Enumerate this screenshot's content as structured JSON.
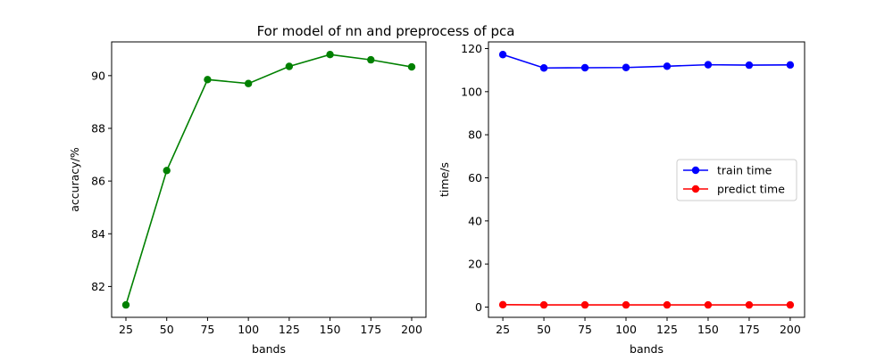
{
  "figure": {
    "title": "For model of nn and preprocess of pca"
  },
  "chart_data": [
    {
      "type": "line",
      "x": [
        25,
        50,
        75,
        100,
        125,
        150,
        175,
        200
      ],
      "series": [
        {
          "values": [
            81.3,
            86.4,
            89.85,
            89.7,
            90.35,
            90.8,
            90.6,
            90.33
          ],
          "color": "#008000"
        }
      ],
      "xlabel": "bands",
      "ylabel": "accuracy/%",
      "xlim": [
        16.25,
        208.75
      ],
      "ylim": [
        80.83,
        91.28
      ],
      "xticks": [
        25,
        50,
        75,
        100,
        125,
        150,
        175,
        200
      ],
      "yticks": [
        82,
        84,
        86,
        88,
        90
      ],
      "grid": false
    },
    {
      "type": "line",
      "x": [
        25,
        50,
        75,
        100,
        125,
        150,
        175,
        200
      ],
      "series": [
        {
          "name": "train time",
          "values": [
            117.2,
            111.0,
            111.1,
            111.2,
            111.8,
            112.5,
            112.3,
            112.4
          ],
          "color": "#0000ff"
        },
        {
          "name": "predict time",
          "values": [
            1.1,
            1.0,
            1.0,
            1.0,
            1.0,
            1.0,
            1.0,
            1.0
          ],
          "color": "#ff0000"
        }
      ],
      "xlabel": "bands",
      "ylabel": "time/s",
      "xlim": [
        16.25,
        208.75
      ],
      "ylim": [
        -4.75,
        123.1
      ],
      "xticks": [
        25,
        50,
        75,
        100,
        125,
        150,
        175,
        200
      ],
      "yticks": [
        0,
        20,
        40,
        60,
        80,
        100,
        120
      ],
      "legend": "center-right",
      "grid": false
    }
  ]
}
